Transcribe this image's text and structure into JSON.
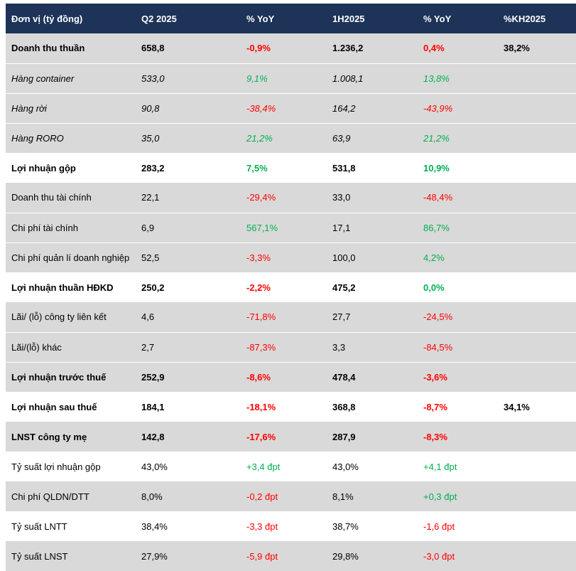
{
  "header": {
    "col0": "Đơn vị (tỷ đồng)",
    "col1": "Q2 2025",
    "col2": "% YoY",
    "col3": "1H2025",
    "col4": "% YoY",
    "col5": "%KH2025"
  },
  "colors": {
    "header_bg": "#1d3357",
    "shade_bg": "#d9d9d9",
    "negative": "#ff0000",
    "positive": "#00b050"
  },
  "rows": [
    {
      "label": "Doanh thu thuần",
      "q2": "658,8",
      "q2_yoy": "-0,9%",
      "h1": "1.236,2",
      "h1_yoy": "0,4%",
      "kh": "38,2%"
    },
    {
      "label": "Hàng container",
      "q2": "533,0",
      "q2_yoy": "9,1%",
      "h1": "1.008,1",
      "h1_yoy": "13,8%",
      "kh": ""
    },
    {
      "label": "Hàng rời",
      "q2": "90,8",
      "q2_yoy": "-38,4%",
      "h1": "164,2",
      "h1_yoy": "-43,9%",
      "kh": ""
    },
    {
      "label": "Hàng RORO",
      "q2": "35,0",
      "q2_yoy": "21,2%",
      "h1": "63,9",
      "h1_yoy": "21,2%",
      "kh": ""
    },
    {
      "label": "Lợi nhuận gộp",
      "q2": "283,2",
      "q2_yoy": "7,5%",
      "h1": "531,8",
      "h1_yoy": "10,9%",
      "kh": ""
    },
    {
      "label": "Doanh thu tài chính",
      "q2": "22,1",
      "q2_yoy": "-29,4%",
      "h1": "33,0",
      "h1_yoy": "-48,4%",
      "kh": ""
    },
    {
      "label": "Chi phí tài chính",
      "q2": "6,9",
      "q2_yoy": "567,1%",
      "h1": "17,1",
      "h1_yoy": "86,7%",
      "kh": ""
    },
    {
      "label": "Chi phí quản lí doanh nghiệp",
      "q2": "52,5",
      "q2_yoy": "-3,3%",
      "h1": "100,0",
      "h1_yoy": "4,2%",
      "kh": ""
    },
    {
      "label": "Lợi nhuận thuần HĐKD",
      "q2": "250,2",
      "q2_yoy": "-2,2%",
      "h1": "475,2",
      "h1_yoy": "0,0%",
      "kh": ""
    },
    {
      "label": "Lãi/ (lỗ) công ty liên kết",
      "q2": "4,6",
      "q2_yoy": "-71,8%",
      "h1": "27,7",
      "h1_yoy": "-24,5%",
      "kh": ""
    },
    {
      "label": "Lãi/(lỗ) khác",
      "q2": "2,7",
      "q2_yoy": "-87,3%",
      "h1": "3,3",
      "h1_yoy": "-84,5%",
      "kh": ""
    },
    {
      "label": "Lợi nhuận trước thuế",
      "q2": "252,9",
      "q2_yoy": "-8,6%",
      "h1": "478,4",
      "h1_yoy": "-3,6%",
      "kh": ""
    },
    {
      "label": "Lợi nhuận sau thuế",
      "q2": "184,1",
      "q2_yoy": "-18,1%",
      "h1": "368,8",
      "h1_yoy": "-8,7%",
      "kh": "34,1%"
    },
    {
      "label": "LNST công ty mẹ",
      "q2": "142,8",
      "q2_yoy": "-17,6%",
      "h1": "287,9",
      "h1_yoy": "-8,3%",
      "kh": ""
    },
    {
      "label": "Tỷ suất lợi nhuận gộp",
      "q2": "43,0%",
      "q2_yoy": "+3,4 đpt",
      "h1": "43,0%",
      "h1_yoy": "+4,1 đpt",
      "kh": ""
    },
    {
      "label": "Chi phí QLDN/DTT",
      "q2": "8,0%",
      "q2_yoy": "-0,2 đpt",
      "h1": "8,1%",
      "h1_yoy": "+0,3 đpt",
      "kh": ""
    },
    {
      "label": "Tỷ suất LNTT",
      "q2": "38,4%",
      "q2_yoy": "-3,3 đpt",
      "h1": "38,7%",
      "h1_yoy": "-1,6 đpt",
      "kh": ""
    },
    {
      "label": "Tỷ suất LNST",
      "q2": "27,9%",
      "q2_yoy": "-5,9 đpt",
      "h1": "29,8%",
      "h1_yoy": "-3,0 đpt",
      "kh": ""
    }
  ]
}
